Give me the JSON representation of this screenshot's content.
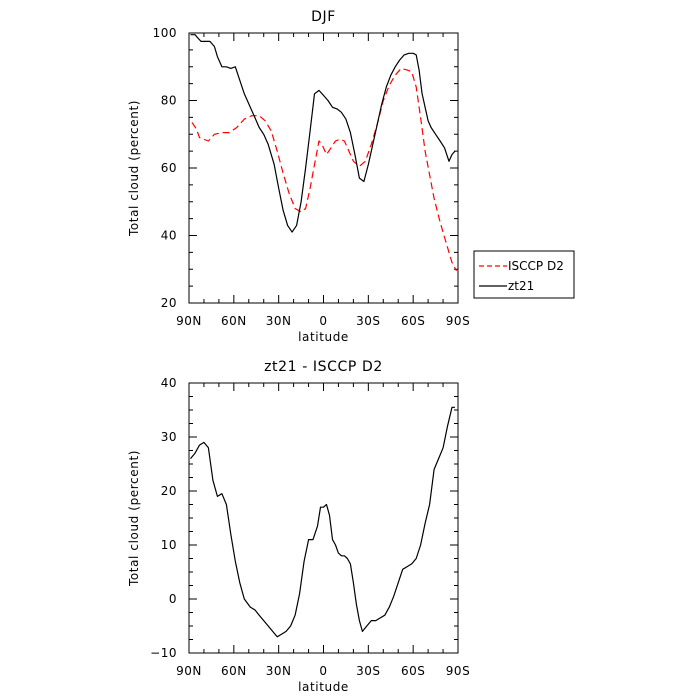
{
  "chart_data": [
    {
      "type": "line",
      "title": "DJF",
      "xlabel": "latitude",
      "ylabel": "Total cloud (percent)",
      "xlim": [
        -90,
        90
      ],
      "ylim": [
        20,
        100
      ],
      "x_ticks": [
        -90,
        -60,
        -30,
        0,
        30,
        60,
        90
      ],
      "x_tick_labels": [
        "90N",
        "60N",
        "30N",
        "0",
        "30S",
        "60S",
        "90S"
      ],
      "y_ticks": [
        20,
        40,
        60,
        80,
        100
      ],
      "y_tick_labels": [
        "20",
        "40",
        "60",
        "80",
        "100"
      ],
      "grid": false,
      "legend_position": "outside-right",
      "series": [
        {
          "name": "ISCCP D2",
          "color": "#ff0000",
          "dash": "dashed",
          "x": [
            -88,
            -85,
            -83,
            -80,
            -77,
            -73,
            -68,
            -63,
            -58,
            -53,
            -48,
            -43,
            -39,
            -35,
            -31,
            -27,
            -23,
            -19,
            -15,
            -12,
            -9,
            -6,
            -3,
            -1,
            2,
            5,
            8,
            11,
            14,
            17,
            20,
            24,
            28,
            32,
            36,
            40,
            44,
            48,
            52,
            56,
            59,
            62,
            65,
            68,
            71,
            74,
            78,
            82,
            86,
            89
          ],
          "y": [
            73.5,
            71.5,
            69,
            68.5,
            68,
            70,
            70.5,
            70.5,
            72,
            74.5,
            75.5,
            75.5,
            74,
            71,
            65,
            58.5,
            52.5,
            48,
            47,
            48,
            54,
            61,
            68,
            67,
            64,
            66,
            68,
            68.5,
            68,
            65,
            62,
            60.5,
            62,
            67,
            73,
            80,
            84.5,
            87.5,
            89.5,
            89,
            88.5,
            84,
            75,
            65,
            58,
            51,
            44,
            38,
            32,
            29.5
          ]
        },
        {
          "name": "zt21",
          "color": "#000000",
          "dash": "solid",
          "x": [
            -89,
            -86,
            -84,
            -82,
            -79,
            -76,
            -73,
            -71,
            -68,
            -65,
            -62,
            -59,
            -56,
            -53,
            -49,
            -46,
            -43,
            -40,
            -37,
            -33,
            -30,
            -27,
            -24,
            -21,
            -18,
            -15,
            -12,
            -9,
            -6,
            -3,
            0,
            3,
            6,
            9,
            12,
            15,
            18,
            21,
            24,
            27,
            30,
            33,
            36,
            39,
            42,
            45,
            48,
            51,
            54,
            57,
            60,
            62,
            64,
            66,
            68,
            70,
            72,
            75,
            78,
            81,
            84,
            86,
            88
          ],
          "y": [
            99.5,
            99.5,
            98.5,
            97.5,
            97.5,
            97.5,
            96,
            93,
            90,
            90,
            89.5,
            90,
            86,
            82,
            78,
            75,
            72,
            70,
            67,
            61,
            54,
            47.5,
            43,
            41,
            43,
            50,
            60,
            71,
            82,
            83,
            81.5,
            80,
            78,
            77.5,
            76.5,
            74.5,
            70.5,
            64,
            57,
            56,
            61,
            67,
            73,
            79,
            84,
            87.5,
            90,
            92,
            93.5,
            94,
            94,
            93.5,
            89,
            82,
            78,
            74,
            72,
            70,
            68,
            66,
            62,
            64,
            65
          ]
        }
      ]
    },
    {
      "type": "line",
      "title": "zt21 - ISCCP D2",
      "xlabel": "latitude",
      "ylabel": "Total cloud (percent)",
      "xlim": [
        -90,
        90
      ],
      "ylim": [
        -10,
        40
      ],
      "x_ticks": [
        -90,
        -60,
        -30,
        0,
        30,
        60,
        90
      ],
      "x_tick_labels": [
        "90N",
        "60N",
        "30N",
        "0",
        "30S",
        "60S",
        "90S"
      ],
      "y_ticks": [
        -10,
        0,
        10,
        20,
        30,
        40
      ],
      "y_tick_labels": [
        "−10",
        "0",
        "10",
        "20",
        "30",
        "40"
      ],
      "grid": false,
      "series": [
        {
          "color": "#000000",
          "dash": "solid",
          "x": [
            -89,
            -86,
            -83,
            -80,
            -77,
            -74,
            -71,
            -68,
            -65,
            -62,
            -59,
            -56,
            -53,
            -49,
            -46,
            -43,
            -40,
            -37,
            -34,
            -31,
            -28,
            -25,
            -22,
            -19,
            -16,
            -13,
            -10,
            -7,
            -4,
            -2,
            0,
            2,
            4,
            6,
            8,
            10,
            12,
            14,
            16,
            18,
            20,
            22,
            24,
            26,
            29,
            32,
            35,
            38,
            41,
            44,
            47,
            50,
            53,
            56,
            59,
            62,
            65,
            68,
            71,
            74,
            77,
            80,
            83,
            86,
            88
          ],
          "y": [
            26,
            27,
            28.5,
            29,
            28,
            22,
            19,
            19.5,
            17.5,
            12,
            7,
            3,
            0,
            -1.5,
            -2,
            -3,
            -4,
            -5,
            -6,
            -7,
            -6.5,
            -6,
            -5,
            -3,
            1,
            7,
            11,
            11,
            13.5,
            17,
            17,
            17.5,
            15.5,
            11,
            10,
            8.5,
            8,
            8,
            7.5,
            6.5,
            3,
            -1,
            -4,
            -6,
            -5,
            -4,
            -4,
            -3.5,
            -3,
            -1.5,
            0.5,
            3,
            5.5,
            6,
            6.5,
            7.5,
            10,
            14,
            17.5,
            24,
            26,
            28,
            32,
            35.5,
            35.5
          ]
        }
      ]
    }
  ]
}
